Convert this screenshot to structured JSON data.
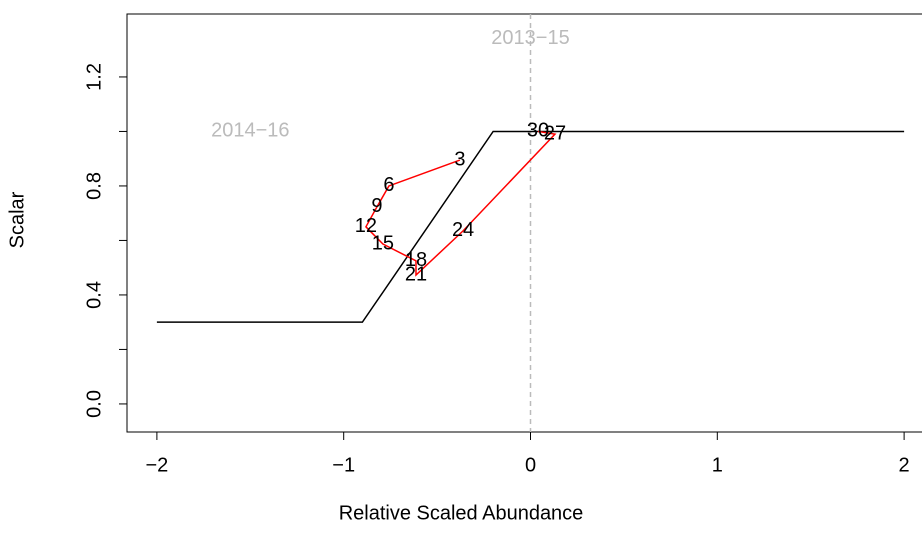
{
  "chart_data": {
    "type": "line",
    "xlabel": "Relative Scaled Abundance",
    "ylabel": "Scalar",
    "xlim": [
      -2.16,
      2.16
    ],
    "ylim": [
      -0.103,
      1.431
    ],
    "xticks": [
      {
        "value": -2,
        "label": "−2"
      },
      {
        "value": -1,
        "label": "−1"
      },
      0,
      1,
      2
    ],
    "yticks": [
      {
        "value": 0,
        "label": "0.0"
      },
      0.4,
      0.8,
      1.2
    ],
    "yticks_unlabeled": [
      0.2,
      0.6,
      1.0
    ],
    "vline": {
      "x": 0,
      "color": "#bbbbbb"
    },
    "annotations": [
      {
        "text": "2013−15",
        "x": 0,
        "y": 1.34
      },
      {
        "text": "2014−16",
        "x": -1.5,
        "y": 1.0
      }
    ],
    "series": [
      {
        "color": "#000000",
        "x": [
          -2,
          -0.9,
          -0.2,
          2
        ],
        "values": [
          0.3,
          0.3,
          1.0,
          1.0
        ]
      },
      {
        "color": "#ff0000",
        "x": [
          -0.378,
          -0.758,
          -0.822,
          -0.881,
          -0.79,
          -0.613,
          -0.613,
          -0.361,
          0.131,
          0.04
        ],
        "values": [
          0.895,
          0.8,
          0.723,
          0.65,
          0.587,
          0.525,
          0.473,
          0.635,
          0.99,
          1.0
        ],
        "point_labels": [
          "3",
          "6",
          "9",
          "12",
          "15",
          "18",
          "21",
          "24",
          "27",
          "30"
        ]
      }
    ]
  }
}
